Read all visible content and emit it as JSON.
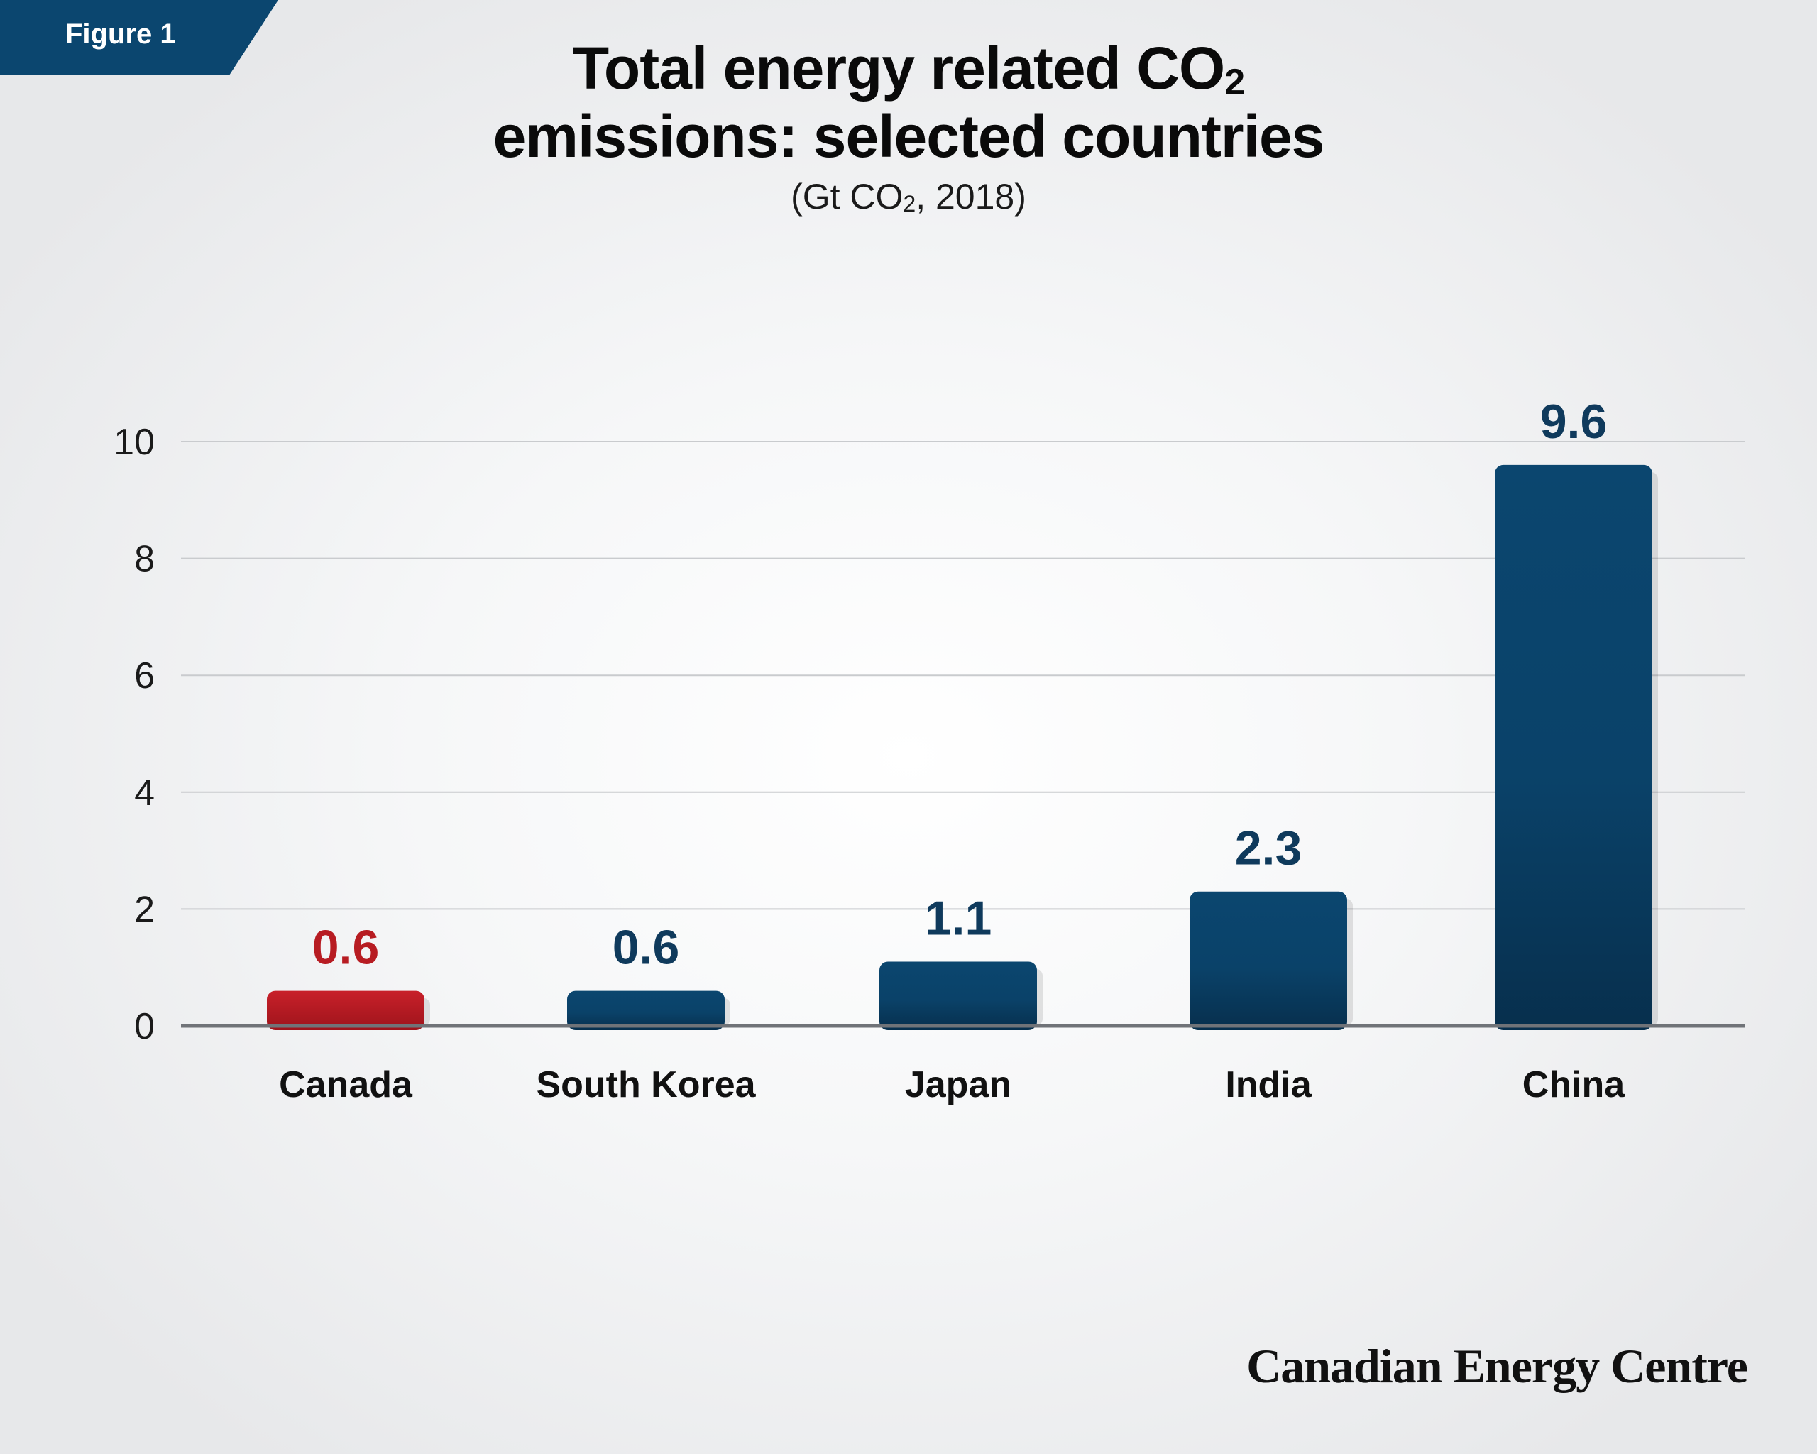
{
  "figure_label": "Figure 1",
  "title_line1_main": "Total energy related CO",
  "title_line1_sub": "2",
  "title_line2": "emissions: selected countries",
  "subtitle_pre": "(Gt CO",
  "subtitle_sub": "2",
  "subtitle_post": ", 2018)",
  "brand": "Canadian Energy Centre",
  "colors": {
    "highlight": "#b71c22",
    "bar": "#0b466f",
    "bar_dark": "#073150",
    "label_dark": "#0f3a5c",
    "tag": "#0b466f"
  },
  "chart_data": {
    "type": "bar",
    "categories": [
      "Canada",
      "South Korea",
      "Japan",
      "India",
      "China"
    ],
    "values": [
      0.6,
      0.6,
      1.1,
      2.3,
      9.6
    ],
    "data_labels": [
      "0.6",
      "0.6",
      "1.1",
      "2.3",
      "9.6"
    ],
    "highlight_index": 0,
    "title": "Total energy related CO2 emissions: selected countries",
    "subtitle": "(Gt CO2, 2018)",
    "xlabel": "",
    "ylabel": "",
    "ylim": [
      0,
      10
    ],
    "yticks": [
      0,
      2,
      4,
      6,
      8,
      10
    ],
    "grid": true,
    "legend": "none"
  }
}
